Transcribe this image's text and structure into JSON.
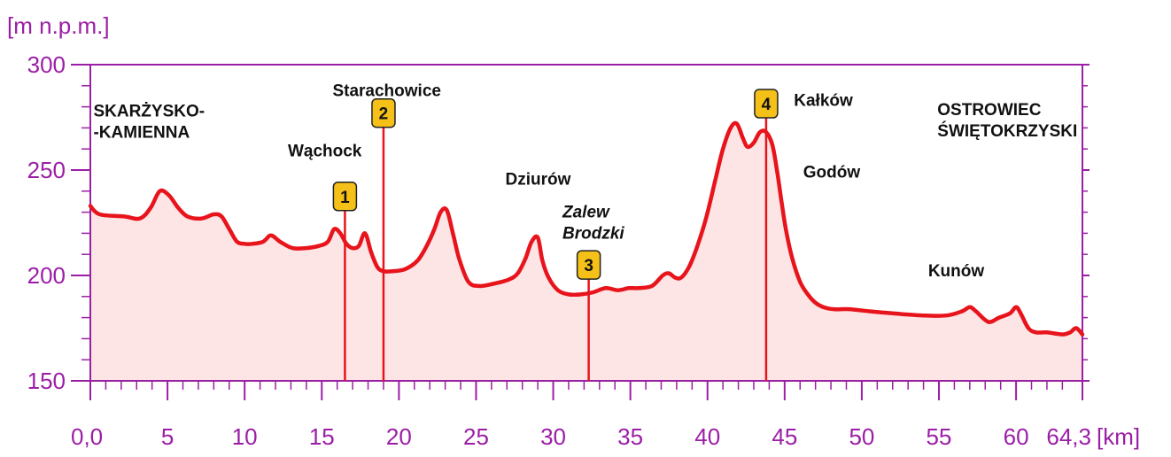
{
  "chart_data": {
    "type": "area",
    "ylabel": "[m n.p.m.]",
    "xlabel": "[km]",
    "ylim": [
      150,
      300
    ],
    "xlim": [
      0,
      64.3
    ],
    "yticks": [
      "300",
      "250",
      "200",
      "150"
    ],
    "xticks": [
      {
        "label": "0,0",
        "v": 0
      },
      {
        "label": "5",
        "v": 5
      },
      {
        "label": "10",
        "v": 10
      },
      {
        "label": "15",
        "v": 15
      },
      {
        "label": "20",
        "v": 20
      },
      {
        "label": "25",
        "v": 25
      },
      {
        "label": "30",
        "v": 30
      },
      {
        "label": "35",
        "v": 35
      },
      {
        "label": "40",
        "v": 40
      },
      {
        "label": "45",
        "v": 45
      },
      {
        "label": "50",
        "v": 50
      },
      {
        "label": "55",
        "v": 55
      },
      {
        "label": "60",
        "v": 60
      },
      {
        "label": "64,3",
        "v": 64.3
      }
    ],
    "x": [
      0,
      0.6,
      2.2,
      3.2,
      3.9,
      4.5,
      5.1,
      5.7,
      6.3,
      7.2,
      8.0,
      8.5,
      9.0,
      9.5,
      10.0,
      10.5,
      11.2,
      11.7,
      12.3,
      13.1,
      14.0,
      14.8,
      15.4,
      15.8,
      16.2,
      16.6,
      17.0,
      17.4,
      17.8,
      18.2,
      18.6,
      19.0,
      19.6,
      20.4,
      21.2,
      21.8,
      22.3,
      22.7,
      23.1,
      23.5,
      23.9,
      24.5,
      25.2,
      26.1,
      27.1,
      27.7,
      28.2,
      28.6,
      29.0,
      29.3,
      29.7,
      30.3,
      31.0,
      31.8,
      32.6,
      33.4,
      34.2,
      34.9,
      35.5,
      36.4,
      37.1,
      37.5,
      37.9,
      38.3,
      38.8,
      39.3,
      39.9,
      40.5,
      41.0,
      41.5,
      41.9,
      42.3,
      42.6,
      43.0,
      43.4,
      43.8,
      44.2,
      44.5,
      44.8,
      45.1,
      45.5,
      46.0,
      46.5,
      47.0,
      47.5,
      48.2,
      49.2,
      50.5,
      52.0,
      54.0,
      55.5,
      56.5,
      57.0,
      57.4,
      58.2,
      58.9,
      59.6,
      60.0,
      60.3,
      60.8,
      61.3,
      62.0,
      63.0,
      63.5,
      63.9,
      64.3
    ],
    "values": [
      233,
      229,
      228,
      227,
      232,
      240,
      238,
      232,
      228,
      227,
      229,
      228,
      222,
      216,
      215,
      215,
      216,
      219,
      216,
      213,
      213,
      214,
      216,
      222,
      220,
      215,
      213,
      214,
      220,
      211,
      204,
      202,
      202,
      203,
      207,
      214,
      222,
      230,
      231,
      220,
      208,
      197,
      195,
      196,
      198,
      201,
      208,
      216,
      218,
      207,
      199,
      193,
      191,
      191,
      192,
      194,
      193,
      194,
      194,
      195,
      200,
      201,
      199,
      199,
      204,
      213,
      227,
      245,
      260,
      270,
      272,
      265,
      261,
      263,
      268,
      268,
      262,
      250,
      235,
      221,
      208,
      197,
      191,
      187,
      185,
      184,
      184,
      183,
      182,
      181,
      181,
      183,
      185,
      183,
      178,
      180,
      182,
      185,
      182,
      175,
      173,
      173,
      172,
      173,
      175,
      172
    ],
    "places": [
      {
        "lines": [
          "SKARŻYSKO-",
          "-KAMIENNA"
        ],
        "x": 0.2,
        "y": 275.5,
        "italic": false
      },
      {
        "lines": [
          "Starachowice"
        ],
        "x": 15.7,
        "y": 285,
        "italic": false
      },
      {
        "lines": [
          "Wąchock"
        ],
        "x": 12.8,
        "y": 256.5,
        "italic": false
      },
      {
        "lines": [
          "Dziurów"
        ],
        "x": 26.9,
        "y": 243,
        "italic": false
      },
      {
        "lines": [
          "Zalew",
          "Brodzki"
        ],
        "x": 30.6,
        "y": 227.5,
        "italic": true
      },
      {
        "lines": [
          "Kałków"
        ],
        "x": 45.6,
        "y": 280.5,
        "italic": false
      },
      {
        "lines": [
          "OSTROWIEC",
          "ŚWIĘTOKRZYSKI"
        ],
        "x": 54.9,
        "y": 276,
        "italic": false
      },
      {
        "lines": [
          "Godów"
        ],
        "x": 46.2,
        "y": 246.5,
        "italic": false
      },
      {
        "lines": [
          "Kunów"
        ],
        "x": 54.3,
        "y": 199.5,
        "italic": false
      }
    ],
    "markers": [
      {
        "label": "1",
        "x": 16.5,
        "y": 237.5
      },
      {
        "label": "2",
        "x": 19.0,
        "y": 277
      },
      {
        "label": "3",
        "x": 32.3,
        "y": 205
      },
      {
        "label": "4",
        "x": 43.8,
        "y": 281.5
      }
    ],
    "colors": {
      "line": "#e8141c",
      "fill": "#fde5e6",
      "axis": "#9b1fa6",
      "marker_fill": "#f5c018",
      "marker_border": "#222222"
    }
  }
}
